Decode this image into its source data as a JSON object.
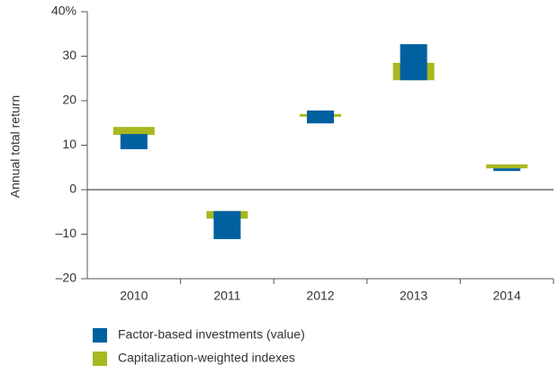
{
  "chart_data": {
    "type": "floating-bar",
    "y_axis_label": "Annual total return",
    "categories": [
      "2010",
      "2011",
      "2012",
      "2013",
      "2014"
    ],
    "series": [
      {
        "name": "Factor-based investments (value)",
        "color": "#0060a0",
        "low": [
          9.1,
          -11.1,
          14.9,
          24.6,
          4.2
        ],
        "high": [
          12.5,
          -4.8,
          17.8,
          32.7,
          4.8
        ]
      },
      {
        "name": "Capitalization-weighted indexes",
        "color": "#a8b820",
        "low": [
          12.3,
          -6.5,
          16.4,
          24.6,
          4.8
        ],
        "high": [
          14.1,
          -4.8,
          17.0,
          28.5,
          5.7
        ]
      }
    ],
    "ylim": [
      -20,
      40
    ],
    "yticks": [
      {
        "value": -20,
        "label": "–20"
      },
      {
        "value": -10,
        "label": "–10"
      },
      0,
      10,
      20,
      30,
      {
        "value": 40,
        "label": "40%"
      }
    ]
  }
}
